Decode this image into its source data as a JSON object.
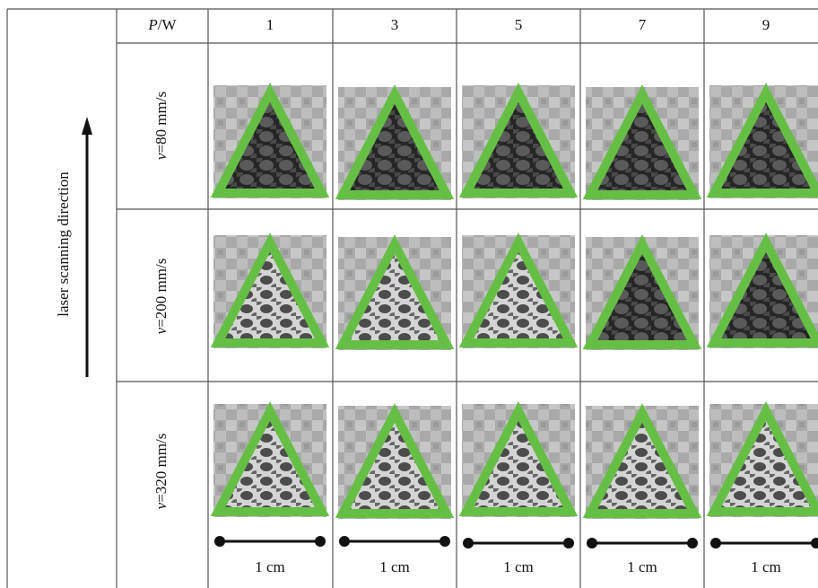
{
  "side_label": "laser scanning direction",
  "header": {
    "power_symbol": "P",
    "power_unit": "/W",
    "columns": [
      1,
      3,
      5,
      7,
      9
    ]
  },
  "rows": [
    {
      "speed_symbol": "v",
      "speed_value": "=80 mm/s"
    },
    {
      "speed_symbol": "v",
      "speed_value": "=200 mm/s"
    },
    {
      "speed_symbol": "v",
      "speed_value": "=320 mm/s"
    }
  ],
  "scale_bars": [
    "1 cm",
    "1 cm",
    "1 cm",
    "1 cm",
    "1 cm"
  ]
}
